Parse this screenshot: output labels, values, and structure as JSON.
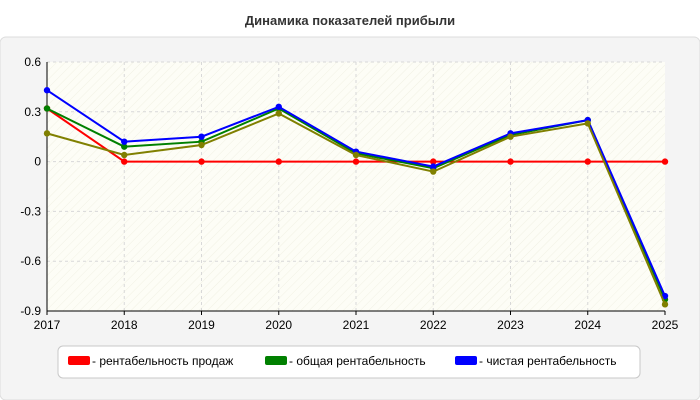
{
  "chart_data": {
    "type": "line",
    "title": "Динамика показателей прибыли",
    "x": [
      "2017",
      "2018",
      "2019",
      "2020",
      "2021",
      "2022",
      "2023",
      "2024",
      "2025"
    ],
    "y_ticks": [
      "0.6",
      "0.3",
      "0",
      "-0.3",
      "-0.6",
      "-0.9"
    ],
    "ylim": [
      -0.9,
      0.6
    ],
    "grid": true,
    "legend_position": "bottom",
    "series": [
      {
        "name": "- рентабельность продаж",
        "color": "#ff0000",
        "values": [
          0.32,
          0.0,
          0.0,
          0.0,
          0.0,
          0.0,
          0.0,
          0.0,
          0.0
        ]
      },
      {
        "name": "- общая рентабельность",
        "color": "#008000",
        "values": [
          0.32,
          0.09,
          0.12,
          0.32,
          0.05,
          -0.04,
          0.16,
          0.25,
          -0.83
        ]
      },
      {
        "name": "- чистая рентабельность",
        "color": "#0000ff",
        "values": [
          0.43,
          0.12,
          0.15,
          0.33,
          0.06,
          -0.03,
          0.17,
          0.25,
          -0.81
        ]
      },
      {
        "name": "",
        "color": "#808000",
        "values": [
          0.17,
          0.04,
          0.1,
          0.29,
          0.04,
          -0.06,
          0.15,
          0.23,
          -0.86
        ]
      }
    ]
  }
}
